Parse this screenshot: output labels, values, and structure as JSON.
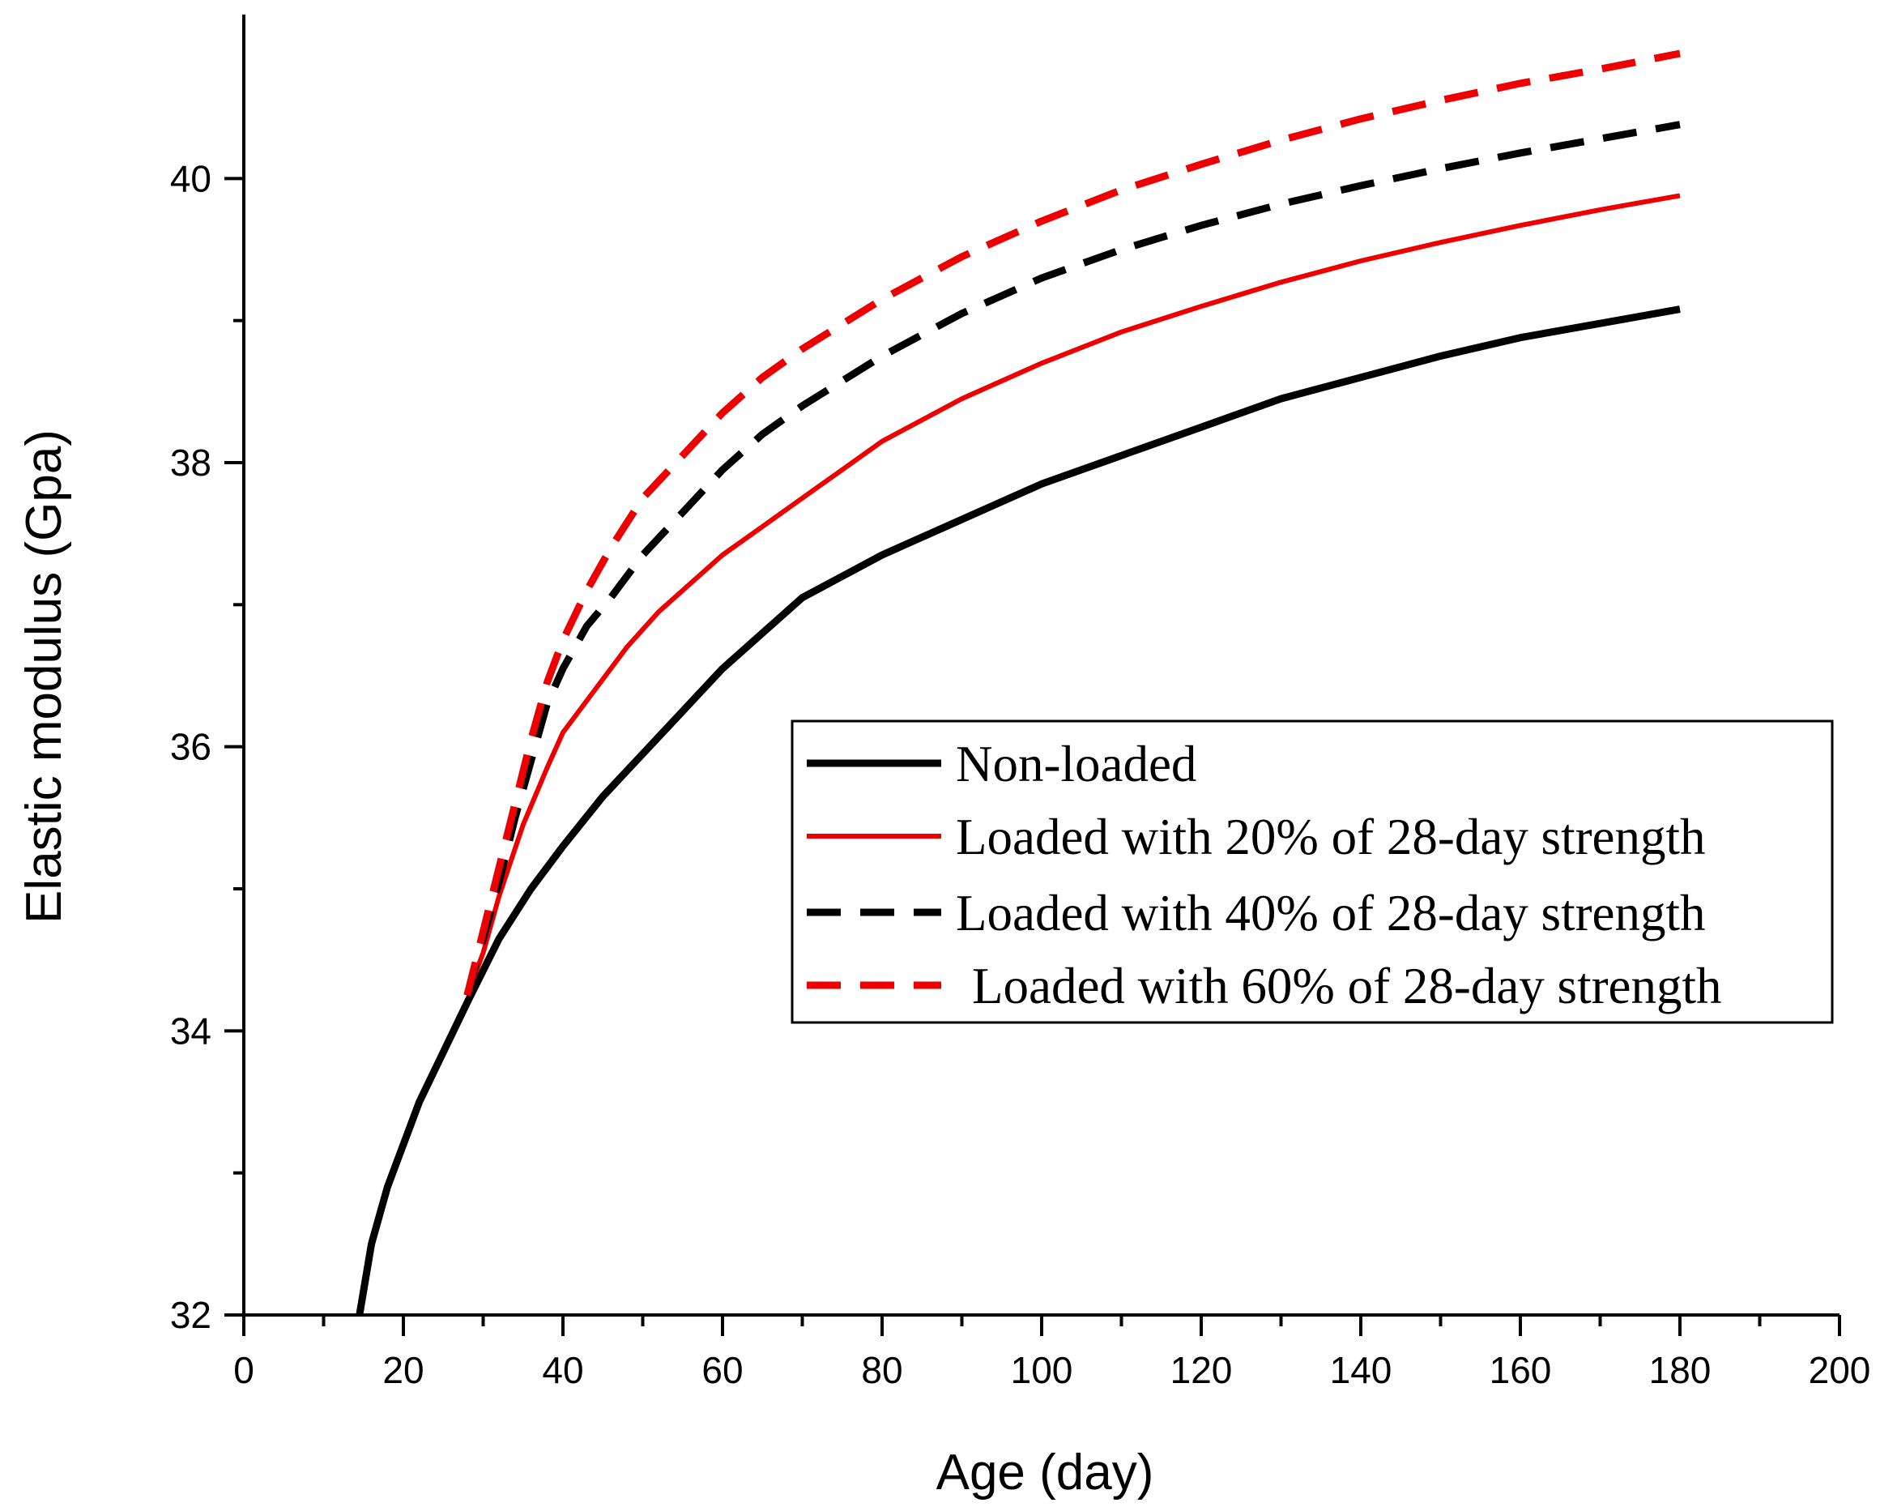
{
  "chart_data": {
    "type": "line",
    "title": "",
    "xlabel": "Age (day)",
    "ylabel": "Elastic modulus (Gpa)",
    "xlim": [
      0,
      200
    ],
    "ylim": [
      32,
      41
    ],
    "xticks": [
      0,
      20,
      40,
      60,
      80,
      100,
      120,
      140,
      160,
      180,
      200
    ],
    "xtick_labels": [
      "0",
      "20",
      "40",
      "60",
      "80",
      "100",
      "120",
      "140",
      "160",
      "180",
      "200"
    ],
    "yticks": [
      32,
      34,
      36,
      38,
      40
    ],
    "ytick_labels": [
      "32",
      "34",
      "36",
      "38",
      "40"
    ],
    "grid": false,
    "legend_position": "right",
    "series": [
      {
        "name": "Non-loaded",
        "color": "#000000",
        "style": "solid",
        "x": [
          14.5,
          16,
          18,
          20,
          22,
          25,
          28,
          32,
          36,
          40,
          45,
          50,
          55,
          60,
          65,
          70,
          75,
          80,
          90,
          100,
          110,
          120,
          130,
          140,
          150,
          160,
          170,
          180
        ],
        "y": [
          32.0,
          32.5,
          32.9,
          33.2,
          33.5,
          33.85,
          34.2,
          34.65,
          35.0,
          35.3,
          35.65,
          35.95,
          36.25,
          36.55,
          36.8,
          37.05,
          37.2,
          37.35,
          37.6,
          37.85,
          38.05,
          38.25,
          38.45,
          38.6,
          38.75,
          38.88,
          38.98,
          39.08
        ]
      },
      {
        "name": "Loaded with 20% of 28-day strength",
        "color": "#ee0000",
        "style": "solid",
        "x": [
          28,
          30,
          32,
          35,
          38,
          40,
          44,
          48,
          52,
          56,
          60,
          65,
          70,
          75,
          80,
          85,
          90,
          100,
          110,
          120,
          130,
          140,
          150,
          160,
          170,
          180
        ],
        "y": [
          34.25,
          34.55,
          34.95,
          35.45,
          35.85,
          36.1,
          36.4,
          36.7,
          36.95,
          37.15,
          37.35,
          37.55,
          37.75,
          37.95,
          38.15,
          38.3,
          38.45,
          38.7,
          38.92,
          39.1,
          39.27,
          39.42,
          39.55,
          39.67,
          39.78,
          39.88
        ]
      },
      {
        "name": "Loaded with 40% of 28-day strength",
        "color": "#000000",
        "style": "dashed",
        "x": [
          28,
          30,
          32,
          34,
          36,
          38,
          40,
          43,
          46,
          50,
          55,
          60,
          65,
          70,
          80,
          90,
          100,
          110,
          120,
          130,
          140,
          150,
          160,
          170,
          180
        ],
        "y": [
          34.25,
          34.65,
          35.05,
          35.5,
          35.9,
          36.3,
          36.55,
          36.85,
          37.05,
          37.35,
          37.65,
          37.95,
          38.2,
          38.4,
          38.75,
          39.05,
          39.3,
          39.5,
          39.67,
          39.82,
          39.95,
          40.07,
          40.18,
          40.28,
          40.38
        ]
      },
      {
        "name": "Loaded with 60% of 28-day strength",
        "color": "#ee0000",
        "style": "dashed",
        "x": [
          28,
          30,
          32,
          34,
          36,
          38,
          40,
          43,
          46,
          50,
          55,
          60,
          65,
          70,
          80,
          90,
          100,
          110,
          120,
          130,
          140,
          150,
          160,
          170,
          180
        ],
        "y": [
          34.25,
          34.7,
          35.15,
          35.6,
          36.05,
          36.45,
          36.75,
          37.1,
          37.4,
          37.75,
          38.05,
          38.35,
          38.6,
          38.8,
          39.15,
          39.45,
          39.7,
          39.92,
          40.1,
          40.27,
          40.42,
          40.55,
          40.67,
          40.77,
          40.88
        ]
      }
    ]
  }
}
